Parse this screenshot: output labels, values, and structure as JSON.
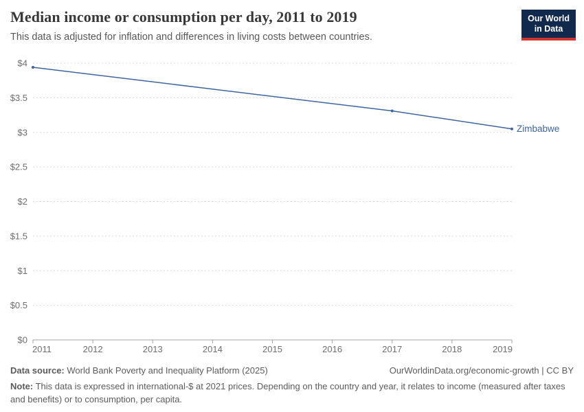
{
  "header": {
    "title": "Median income or consumption per day, 2011 to 2019",
    "subtitle": "This data is adjusted for inflation and differences in living costs between countries.",
    "logo": {
      "line1": "Our World",
      "line2": "in Data"
    }
  },
  "chart_data": {
    "type": "line",
    "title": "Median income or consumption per day, 2011 to 2019",
    "x": [
      2011,
      2017,
      2019
    ],
    "series": [
      {
        "name": "Zimbabwe",
        "values": [
          3.94,
          3.31,
          3.05
        ],
        "color": "#3d649f"
      }
    ],
    "xlabel": "",
    "ylabel": "",
    "xlim": [
      2011,
      2019
    ],
    "ylim": [
      0,
      4
    ],
    "x_ticks": [
      2011,
      2012,
      2013,
      2014,
      2015,
      2016,
      2017,
      2018,
      2019
    ],
    "y_ticks": [
      {
        "v": 0,
        "label": "$0"
      },
      {
        "v": 0.5,
        "label": "$0.5"
      },
      {
        "v": 1,
        "label": "$1"
      },
      {
        "v": 1.5,
        "label": "$1.5"
      },
      {
        "v": 2,
        "label": "$2"
      },
      {
        "v": 2.5,
        "label": "$2.5"
      },
      {
        "v": 3,
        "label": "$3"
      },
      {
        "v": 3.5,
        "label": "$3.5"
      },
      {
        "v": 4,
        "label": "$4"
      }
    ],
    "grid": "horizontal-dashed",
    "legend_position": "end-of-line-label",
    "entity_label": "Zimbabwe"
  },
  "colors": {
    "line": "#3d649f",
    "entity_label": "#3d649f",
    "gridline": "#dcdcdc",
    "axis": "#a3a3a3",
    "tick_label": "#6e6e6e",
    "title": "#383838",
    "subtitle": "#575757",
    "footer": "#5b5b5b",
    "logo_bg": "#12294e",
    "logo_bar": "#d0342c"
  },
  "footer": {
    "data_source_label": "Data source:",
    "data_source_text": " World Bank Poverty and Inequality Platform (2025)",
    "link": "OurWorldinData.org/economic-growth | CC BY",
    "note_label": "Note:",
    "note_text": " This data is expressed in international-$ at 2021 prices. Depending on the country and year, it relates to income (measured after taxes and benefits) or to consumption, per capita."
  }
}
